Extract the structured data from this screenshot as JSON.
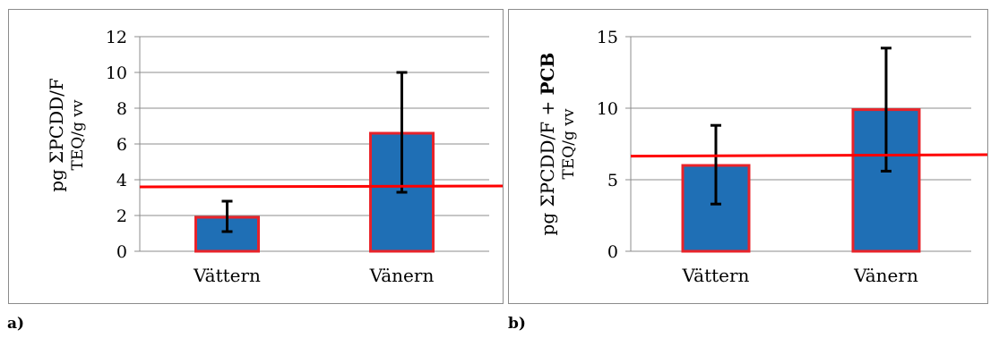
{
  "chart_data": [
    {
      "type": "bar",
      "panel_label": "a)",
      "categories": [
        "Vättern",
        "Vänern"
      ],
      "values": [
        1.9,
        6.6
      ],
      "error_low": [
        1.1,
        3.3
      ],
      "error_high": [
        2.8,
        10.0
      ],
      "reference_line": {
        "y_start": 3.6,
        "y_end": 3.65,
        "color": "#ff0000"
      },
      "ylabel_line1": "pg ΣPCDD/F",
      "ylabel_line1_bold": "",
      "ylabel_line2": "TEQ/g vv",
      "ylim": [
        0,
        12
      ],
      "yticks": [
        "0",
        "2",
        "4",
        "6",
        "8",
        "10",
        "12"
      ],
      "grid": true,
      "bar_color": "#1f6fb5",
      "bar_edge_color": "#e8232a"
    },
    {
      "type": "bar",
      "panel_label": "b)",
      "categories": [
        "Vättern",
        "Vänern"
      ],
      "values": [
        6.0,
        9.9
      ],
      "error_low": [
        3.3,
        5.6
      ],
      "error_high": [
        8.8,
        14.2
      ],
      "reference_line": {
        "y_start": 6.65,
        "y_end": 6.75,
        "color": "#ff0000"
      },
      "ylabel_line1": "pg ΣPCDD/F + ",
      "ylabel_line1_bold": "PCB",
      "ylabel_line2": "TEQ/g vv",
      "ylim": [
        0,
        15
      ],
      "yticks": [
        "0",
        "5",
        "10",
        "15"
      ],
      "grid": true,
      "bar_color": "#1f6fb5",
      "bar_edge_color": "#e8232a"
    }
  ]
}
